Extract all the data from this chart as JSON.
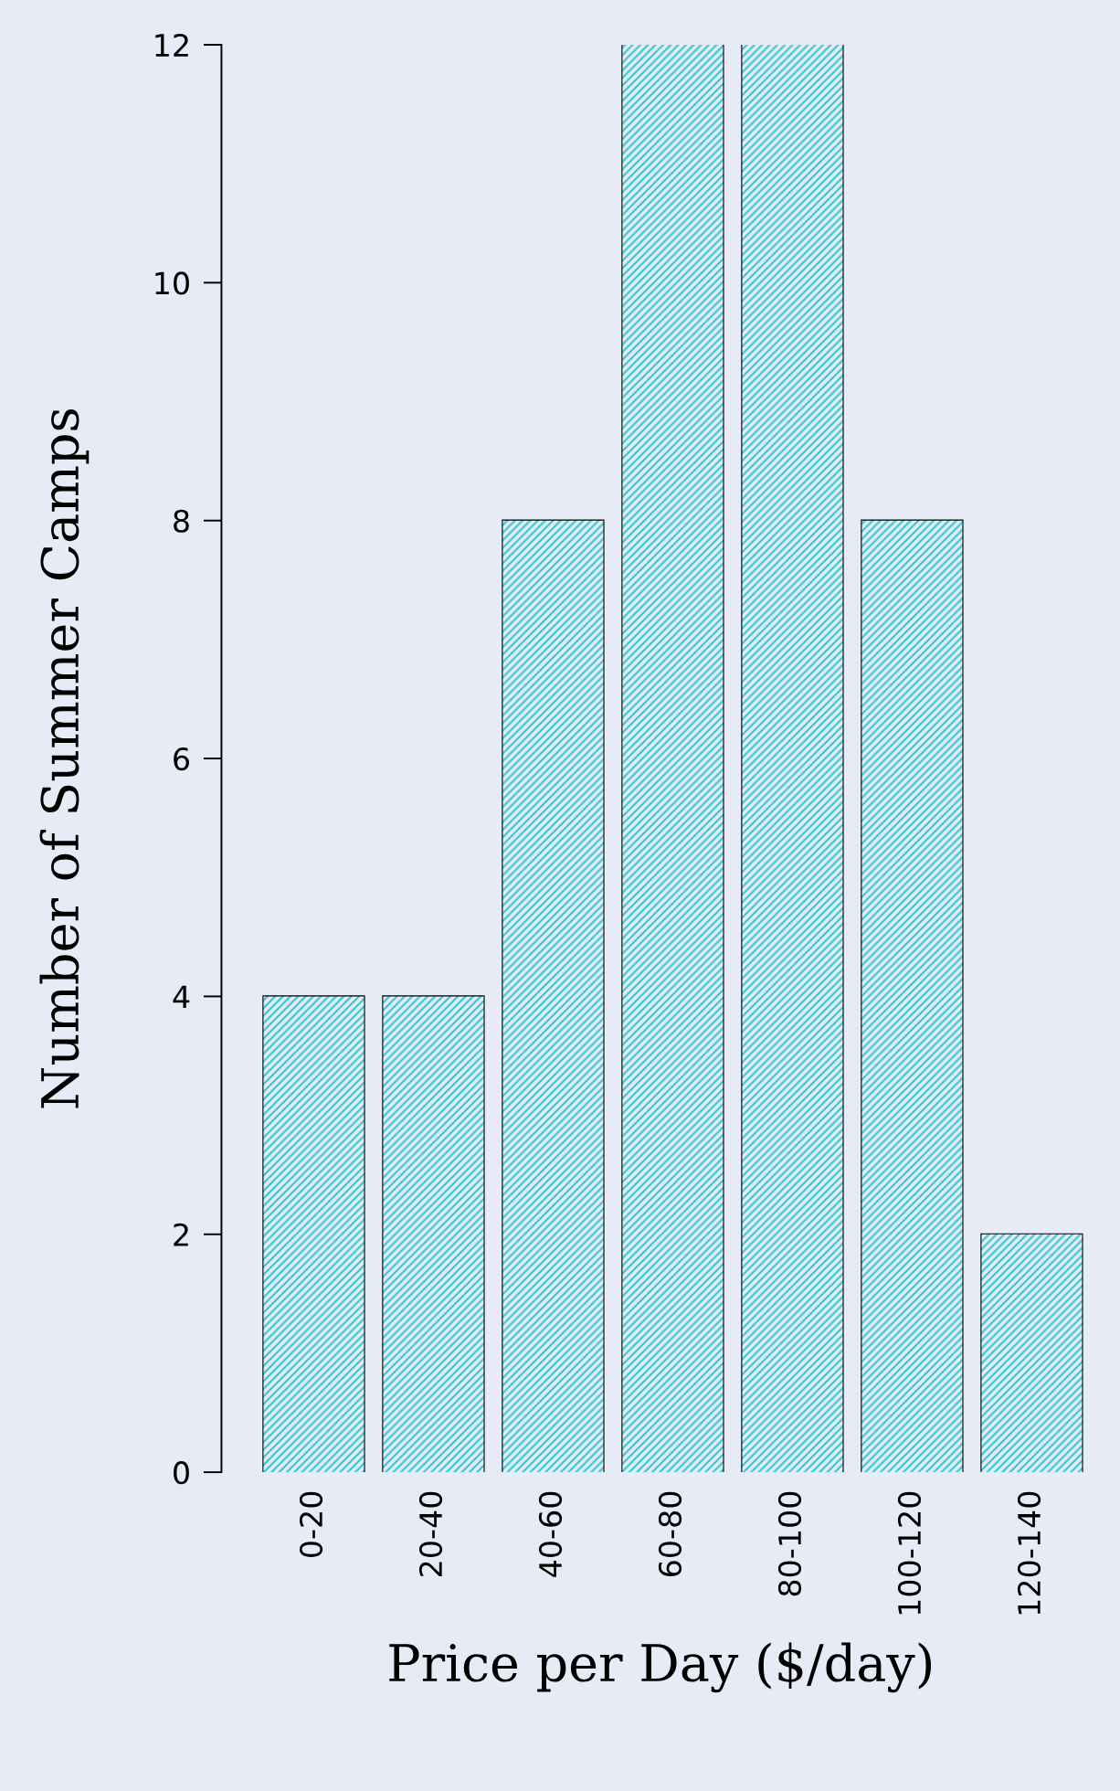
{
  "chart_data": {
    "type": "bar",
    "xlabel": "Price per Day ($/day)",
    "ylabel": "Number of Summer Camps",
    "categories": [
      "0-20",
      "20-40",
      "40-60",
      "60-80",
      "80-100",
      "100-120",
      "120-140"
    ],
    "values": [
      4,
      4,
      8,
      12,
      12,
      8,
      2
    ],
    "color": "#2ec8d2",
    "ylim": [
      0,
      12
    ],
    "yticks": [
      0,
      2,
      4,
      6,
      8,
      10,
      12
    ],
    "grid": false,
    "legend": false
  }
}
